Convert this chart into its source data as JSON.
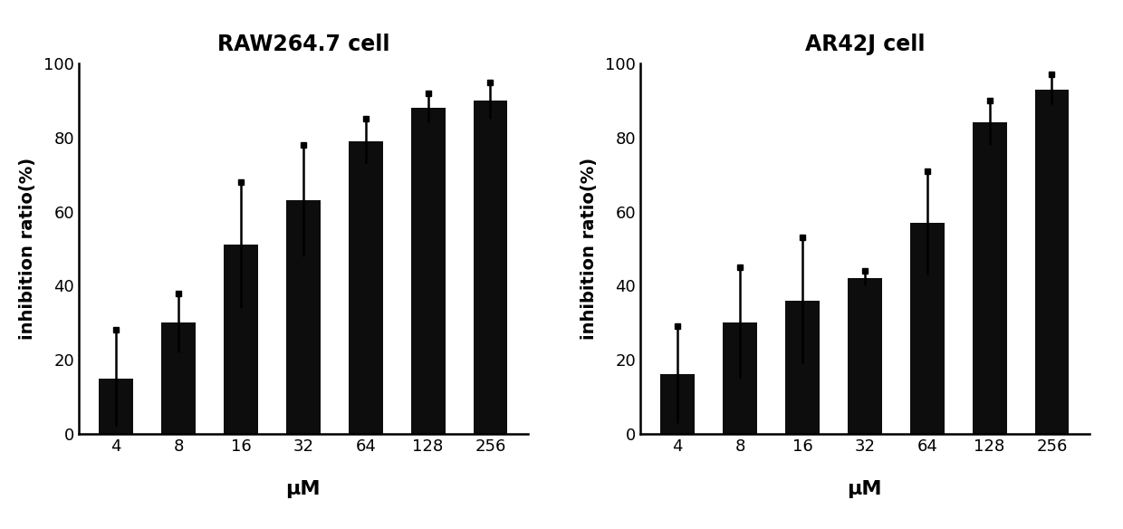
{
  "categories": [
    "4",
    "8",
    "16",
    "32",
    "64",
    "128",
    "256"
  ],
  "raw_values": [
    15,
    30,
    51,
    63,
    79,
    88,
    90
  ],
  "raw_errors": [
    13,
    8,
    17,
    15,
    6,
    4,
    5
  ],
  "ar42j_values": [
    16,
    30,
    36,
    42,
    57,
    84,
    93
  ],
  "ar42j_errors": [
    13,
    15,
    17,
    2,
    14,
    6,
    4
  ],
  "title_raw": "RAW264.7 cell",
  "title_ar": "AR42J cell",
  "ylabel": "inhibition ratio(%)",
  "xlabel": "μM",
  "ylim": [
    0,
    100
  ],
  "bar_color": "#0d0d0d",
  "bar_width": 0.55,
  "title_fontsize": 17,
  "label_fontsize": 14,
  "tick_fontsize": 13,
  "figsize": [
    12.4,
    5.84
  ],
  "dpi": 100
}
